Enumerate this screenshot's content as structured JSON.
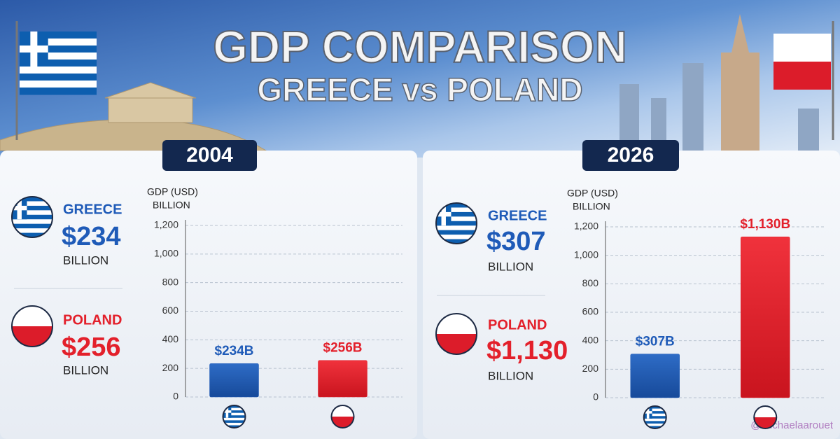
{
  "header": {
    "title": "GDP COMPARISON",
    "subtitle": "GREECE vs POLAND"
  },
  "chart_data": [
    {
      "type": "bar",
      "title": "2004",
      "y_label": "GDP (USD)",
      "y_unit": "BILLION",
      "summary": [
        {
          "name": "GREECE",
          "amount": "$234",
          "unit": "BILLION"
        },
        {
          "name": "POLAND",
          "amount": "$256",
          "unit": "BILLION"
        }
      ],
      "categories": [
        null,
        null
      ],
      "values": [
        234,
        256
      ],
      "value_labels": [
        "$234B",
        "$256B"
      ],
      "colors": [
        "#1f5bb8",
        "#e3202b"
      ],
      "ylim": [
        0,
        1200
      ],
      "yticks": [
        0,
        200,
        400,
        600,
        800,
        {
          "value": 1000,
          "label": "1,000"
        },
        {
          "value": 1200,
          "label": "1,200"
        }
      ],
      "grid": true
    },
    {
      "type": "bar",
      "title": "2026",
      "y_label": "GDP (USD)",
      "y_unit": "BILLION",
      "summary": [
        {
          "name": "GREECE",
          "amount": "$307",
          "unit": "BILLION"
        },
        {
          "name": "POLAND",
          "amount": "$1,130",
          "unit": "BILLION"
        }
      ],
      "categories": [
        null,
        null
      ],
      "values": [
        307,
        1130
      ],
      "value_labels": [
        "$307B",
        "$1,130B"
      ],
      "colors": [
        "#1f5bb8",
        "#e3202b"
      ],
      "ylim": [
        0,
        1200
      ],
      "yticks": [
        0,
        200,
        400,
        600,
        800,
        {
          "value": 1000,
          "label": "1,000"
        },
        {
          "value": 1200,
          "label": "1,200"
        }
      ],
      "grid": true
    }
  ],
  "watermark": "@michaelaarouet"
}
